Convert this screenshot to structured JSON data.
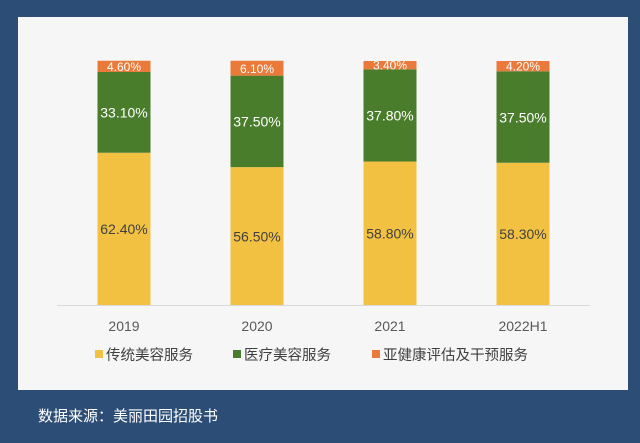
{
  "chart_data": {
    "type": "bar",
    "stacked": true,
    "categories": [
      "2019",
      "2020",
      "2021",
      "2022H1"
    ],
    "series": [
      {
        "name": "传统美容服务",
        "color": "#f2c141",
        "values": [
          62.4,
          56.5,
          58.8,
          58.3
        ],
        "labels": [
          "62.40%",
          "56.50%",
          "58.80%",
          "58.30%"
        ]
      },
      {
        "name": "医疗美容服务",
        "color": "#4a7d2b",
        "values": [
          33.1,
          37.5,
          37.8,
          37.5
        ],
        "labels": [
          "33.10%",
          "37.50%",
          "37.80%",
          "37.50%"
        ]
      },
      {
        "name": "亚健康评估及干预服务",
        "color": "#e97a3a",
        "values": [
          4.6,
          6.1,
          3.4,
          4.2
        ],
        "labels": [
          "4.60%",
          "6.10%",
          "3.40%",
          "4.20%"
        ]
      }
    ],
    "ylim": [
      0,
      100
    ],
    "grid": false,
    "legend": "bottom"
  },
  "source": "数据来源：美丽田园招股书"
}
